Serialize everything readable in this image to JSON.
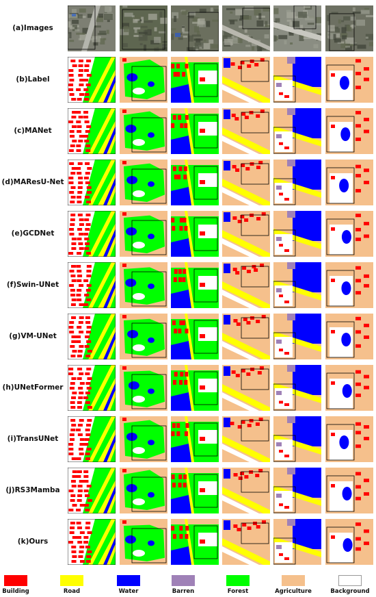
{
  "rows": [
    {
      "label": "(a)Images"
    },
    {
      "label": "(b)Label"
    },
    {
      "label": "(c)MANet"
    },
    {
      "label": "(d)MAResU-Net"
    },
    {
      "label": "(e)GCDNet"
    },
    {
      "label": "(f)Swin-UNet"
    },
    {
      "label": "(g)VM-UNet"
    },
    {
      "label": "(h)UNetFormer"
    },
    {
      "label": "(i)TransUNet"
    },
    {
      "label": "(j)RS3Mamba"
    },
    {
      "label": "(k)Ours"
    }
  ],
  "legend": [
    {
      "label": "Building",
      "color": "#ff0000"
    },
    {
      "label": "Road",
      "color": "#ffff00"
    },
    {
      "label": "Water",
      "color": "#0000ff"
    },
    {
      "label": "Barren",
      "color": "#9f81b7"
    },
    {
      "label": "Forest",
      "color": "#00ff00"
    },
    {
      "label": "Agriculture",
      "color": "#f5c08c"
    },
    {
      "label": "Background",
      "color": "#ffffff"
    }
  ]
}
